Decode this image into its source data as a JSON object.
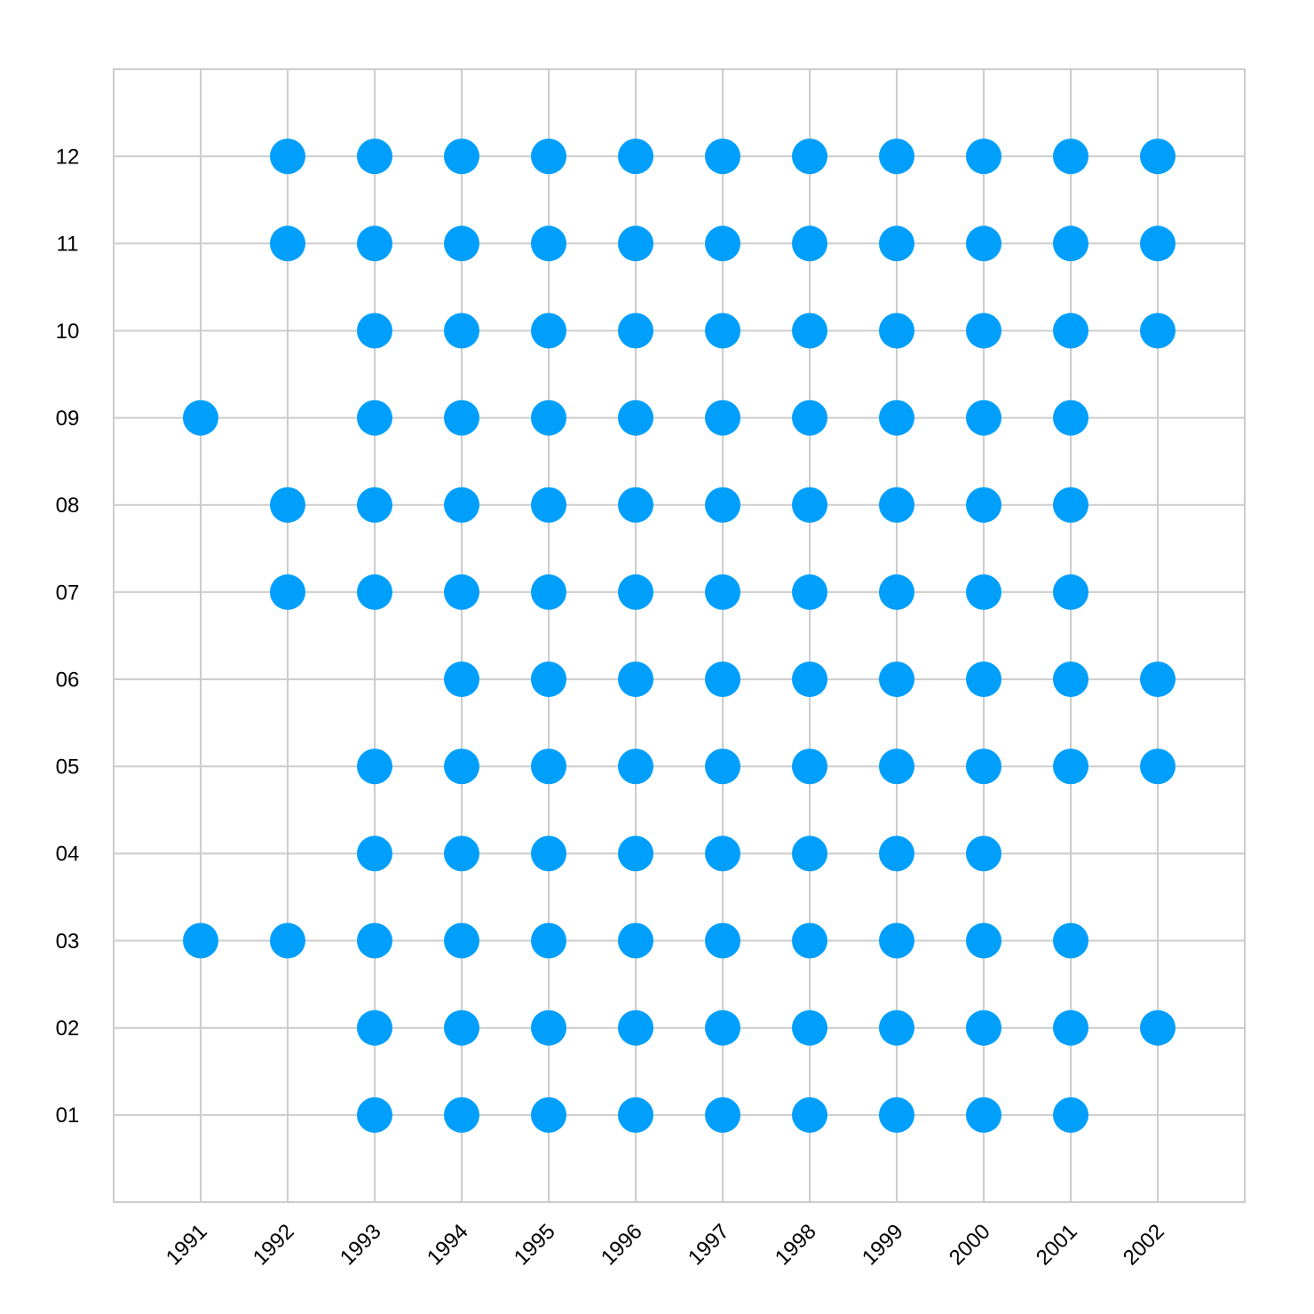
{
  "chart_data": {
    "type": "scatter",
    "xlim": [
      1990,
      2003
    ],
    "xticks": [
      1991,
      1992,
      1993,
      1994,
      1995,
      1996,
      1997,
      1998,
      1999,
      2000,
      2001,
      2002
    ],
    "ylim": [
      0,
      13
    ],
    "yticks": [
      {
        "value": 1,
        "label": "01"
      },
      {
        "value": 2,
        "label": "02"
      },
      {
        "value": 3,
        "label": "03"
      },
      {
        "value": 4,
        "label": "04"
      },
      {
        "value": 5,
        "label": "05"
      },
      {
        "value": 6,
        "label": "06"
      },
      {
        "value": 7,
        "label": "07"
      },
      {
        "value": 8,
        "label": "08"
      },
      {
        "value": 9,
        "label": "09"
      },
      {
        "value": 10,
        "label": "10"
      },
      {
        "value": 11,
        "label": "11"
      },
      {
        "value": 12,
        "label": "12"
      }
    ],
    "grid": true,
    "color": "#009ffc",
    "x": [
      1992,
      1993,
      1994,
      1995,
      1996,
      1997,
      1998,
      1999,
      2000,
      2001,
      2002,
      1992,
      1993,
      1994,
      1995,
      1996,
      1997,
      1998,
      1999,
      2000,
      2001,
      2002,
      1993,
      1994,
      1995,
      1996,
      1997,
      1998,
      1999,
      2000,
      2001,
      2002,
      1991,
      1993,
      1994,
      1995,
      1996,
      1997,
      1998,
      1999,
      2000,
      2001,
      1992,
      1993,
      1994,
      1995,
      1996,
      1997,
      1998,
      1999,
      2000,
      2001,
      1992,
      1993,
      1994,
      1995,
      1996,
      1997,
      1998,
      1999,
      2000,
      2001,
      1994,
      1995,
      1996,
      1997,
      1998,
      1999,
      2000,
      2001,
      2002,
      1993,
      1994,
      1995,
      1996,
      1997,
      1998,
      1999,
      2000,
      2001,
      2002,
      1993,
      1994,
      1995,
      1996,
      1997,
      1998,
      1999,
      2000,
      1991,
      1992,
      1993,
      1994,
      1995,
      1996,
      1997,
      1998,
      1999,
      2000,
      2001,
      1993,
      1994,
      1995,
      1996,
      1997,
      1998,
      1999,
      2000,
      2001,
      2002,
      1993,
      1994,
      1995,
      1996,
      1997,
      1998,
      1999,
      2000,
      2001
    ],
    "y": [
      12,
      12,
      12,
      12,
      12,
      12,
      12,
      12,
      12,
      12,
      12,
      11,
      11,
      11,
      11,
      11,
      11,
      11,
      11,
      11,
      11,
      11,
      10,
      10,
      10,
      10,
      10,
      10,
      10,
      10,
      10,
      10,
      9,
      9,
      9,
      9,
      9,
      9,
      9,
      9,
      9,
      9,
      8,
      8,
      8,
      8,
      8,
      8,
      8,
      8,
      8,
      8,
      7,
      7,
      7,
      7,
      7,
      7,
      7,
      7,
      7,
      7,
      6,
      6,
      6,
      6,
      6,
      6,
      6,
      6,
      6,
      5,
      5,
      5,
      5,
      5,
      5,
      5,
      5,
      5,
      5,
      4,
      4,
      4,
      4,
      4,
      4,
      4,
      4,
      3,
      3,
      3,
      3,
      3,
      3,
      3,
      3,
      3,
      3,
      3,
      2,
      2,
      2,
      2,
      2,
      2,
      2,
      2,
      2,
      2,
      1,
      1,
      1,
      1,
      1,
      1,
      1,
      1,
      1
    ]
  }
}
